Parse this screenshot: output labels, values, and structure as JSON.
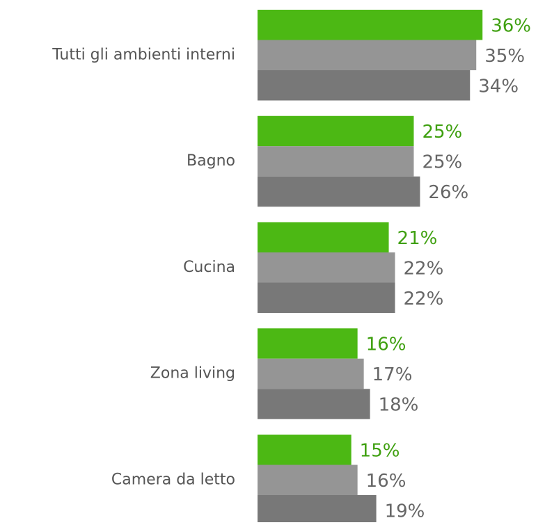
{
  "chart_data": {
    "type": "barh",
    "categories": [
      "Tutti gli ambienti interni",
      "Bagno",
      "Cucina",
      "Zona living",
      "Camera da letto"
    ],
    "series": [
      {
        "color": "#4cb814",
        "label_color": "#3fa010",
        "values": [
          36,
          25,
          21,
          16,
          15
        ],
        "value_labels": [
          "36%",
          "25%",
          "21%",
          "16%",
          "15%"
        ]
      },
      {
        "color": "#959595",
        "label_color": "#666666",
        "values": [
          35,
          25,
          22,
          17,
          16
        ],
        "value_labels": [
          "35%",
          "25%",
          "22%",
          "17%",
          "16%"
        ]
      },
      {
        "color": "#787878",
        "label_color": "#666666",
        "values": [
          34,
          26,
          22,
          18,
          19
        ],
        "value_labels": [
          "34%",
          "26%",
          "22%",
          "18%",
          "19%"
        ]
      }
    ],
    "xlim": [
      0,
      46
    ]
  }
}
